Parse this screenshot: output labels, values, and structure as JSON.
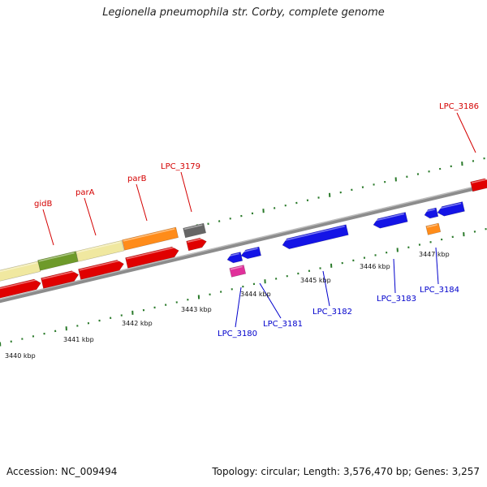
{
  "title": "Legionella pneumophila str. Corby, complete genome",
  "footer": {
    "accession": "Accession: NC_009494",
    "summary": "Topology: circular; Length: 3,576,470 bp; Genes: 3,257"
  },
  "colors": {
    "backbone": "#8c8c8c",
    "ticks": "#2a7a2a",
    "forward_gene": "#e00000",
    "reverse_gene": "#1414e6",
    "label_forward": "#d40000",
    "label_reverse": "#0000cc",
    "gidB": "#6e9a2a",
    "parA_parB_region": "#f0e8a0",
    "parB": "#ff8c1a",
    "LPC_3179": "#666666",
    "rna_magenta": "#e0309a",
    "small_orange": "#ff8c1a"
  },
  "scale_labels": [
    "3440 kbp",
    "3441 kbp",
    "3442 kbp",
    "3443 kbp",
    "3444 kbp",
    "3445 kbp",
    "3446 kbp",
    "3447 kbp"
  ],
  "forward_labels": [
    "gidB",
    "parA",
    "parB",
    "LPC_3179",
    "LPC_3186"
  ],
  "reverse_labels": [
    "LPC_3180",
    "LPC_3181",
    "LPC_3182",
    "LPC_3183",
    "LPC_3184"
  ]
}
